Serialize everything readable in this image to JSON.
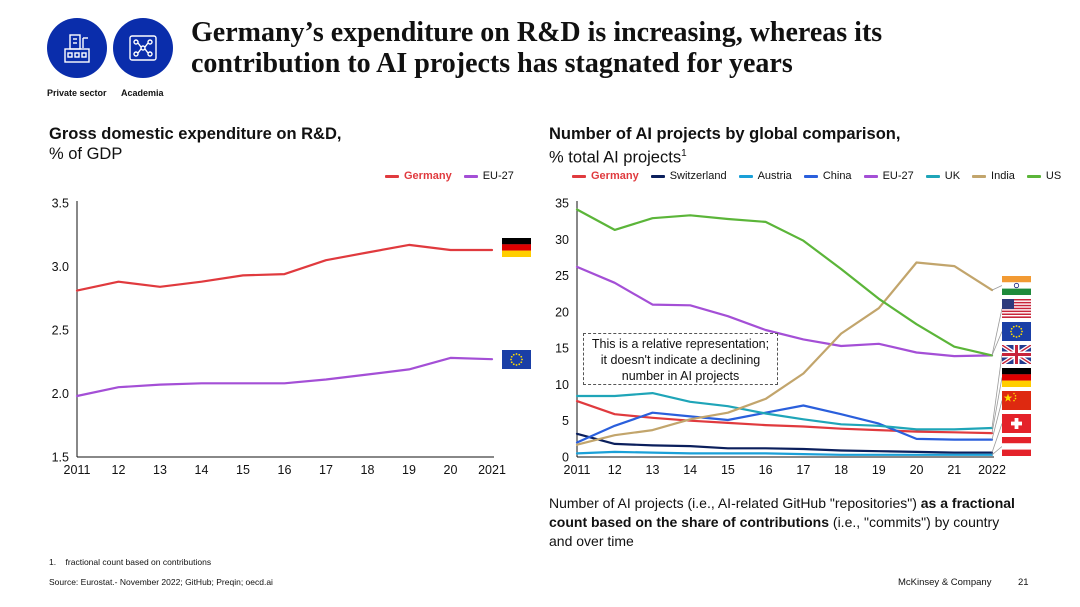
{
  "icons": [
    {
      "name": "private-sector-icon",
      "label": "Private sector"
    },
    {
      "name": "academia-icon",
      "label": "Academia"
    }
  ],
  "header": {
    "title_line1": "Germany’s expenditure on R&D is increasing, whereas its",
    "title_line2": "contribution to AI projects has stagnated for years"
  },
  "left_chart_header": {
    "bold": "Gross domestic expenditure on R&D,",
    "sub": "% of GDP"
  },
  "right_chart_header": {
    "bold": "Number of AI projects by global comparison,",
    "sub": "% total AI projects",
    "sup": "1"
  },
  "callout": {
    "line1": "This is a relative representation;",
    "line2": "it doesn't indicate a declining",
    "line3": "number in AI projects"
  },
  "note": {
    "part1": "Number of AI projects (i.e., AI-related GitHub \"repositories\") ",
    "bold": "as a fractional count based on the share of contributions",
    "part2": " (i.e., \"commits\") by country and over time"
  },
  "footnote": "1.    fractional count based on contributions",
  "source": "Source: Eurostat.- November 2022; GitHub; Preqin; oecd.ai",
  "brand": "McKinsey & Company",
  "page_number": "21",
  "chart_data": [
    {
      "type": "line",
      "title": "Gross domestic expenditure on R&D, % of GDP",
      "categories": [
        "2011",
        "12",
        "13",
        "14",
        "15",
        "16",
        "17",
        "18",
        "19",
        "20",
        "2021"
      ],
      "ylim": [
        1.5,
        3.5
      ],
      "yticks": [
        "1.5",
        "2.0",
        "2.5",
        "3.0",
        "3.5"
      ],
      "grid": false,
      "series": [
        {
          "name": "Germany",
          "color": "#e03a3e",
          "values": [
            2.81,
            2.88,
            2.84,
            2.88,
            2.93,
            2.94,
            3.05,
            3.11,
            3.17,
            3.13,
            3.13
          ]
        },
        {
          "name": "EU-27",
          "color": "#a44fd6",
          "values": [
            1.98,
            2.05,
            2.07,
            2.08,
            2.08,
            2.08,
            2.11,
            2.15,
            2.19,
            2.28,
            2.27
          ]
        }
      ]
    },
    {
      "type": "line",
      "title": "Number of AI projects by global comparison, % total AI projects",
      "categories": [
        "2011",
        "12",
        "13",
        "14",
        "15",
        "16",
        "17",
        "18",
        "19",
        "20",
        "21",
        "2022"
      ],
      "ylim": [
        0,
        35
      ],
      "yticks": [
        "0",
        "5",
        "10",
        "15",
        "20",
        "25",
        "30",
        "35"
      ],
      "grid": false,
      "series": [
        {
          "name": "Germany",
          "color": "#e03a3e",
          "values": [
            7.7,
            5.9,
            5.4,
            5.0,
            4.7,
            4.4,
            4.2,
            3.9,
            3.7,
            3.5,
            3.4,
            3.3
          ]
        },
        {
          "name": "Switzerland",
          "color": "#0b1f5c",
          "values": [
            3.2,
            1.8,
            1.6,
            1.5,
            1.2,
            1.2,
            1.1,
            0.9,
            0.8,
            0.7,
            0.6,
            0.6
          ]
        },
        {
          "name": "Austria",
          "color": "#1aa0d8",
          "values": [
            0.5,
            0.7,
            0.6,
            0.5,
            0.5,
            0.5,
            0.4,
            0.3,
            0.3,
            0.3,
            0.3,
            0.3
          ]
        },
        {
          "name": "China",
          "color": "#2a5fdc",
          "values": [
            2.0,
            4.3,
            6.1,
            5.6,
            5.1,
            6.1,
            7.1,
            5.9,
            4.6,
            2.5,
            2.4,
            2.4
          ]
        },
        {
          "name": "EU-27",
          "color": "#a44fd6",
          "values": [
            26.2,
            24.0,
            21.0,
            20.9,
            19.4,
            17.5,
            16.2,
            15.3,
            15.6,
            14.4,
            13.9,
            14.0
          ]
        },
        {
          "name": "UK",
          "color": "#1fa5b8",
          "values": [
            8.4,
            8.4,
            8.8,
            7.6,
            7.0,
            6.0,
            5.2,
            4.5,
            4.3,
            3.8,
            3.8,
            4.0
          ]
        },
        {
          "name": "India",
          "color": "#c2a56c",
          "values": [
            1.7,
            3.0,
            3.7,
            5.2,
            6.1,
            8.0,
            11.5,
            17.0,
            20.5,
            26.8,
            26.3,
            23.0
          ]
        },
        {
          "name": "US",
          "color": "#5bb539",
          "values": [
            34.1,
            31.3,
            32.9,
            33.3,
            32.8,
            32.4,
            29.8,
            25.9,
            21.8,
            18.3,
            15.2,
            14.0
          ]
        }
      ]
    }
  ]
}
